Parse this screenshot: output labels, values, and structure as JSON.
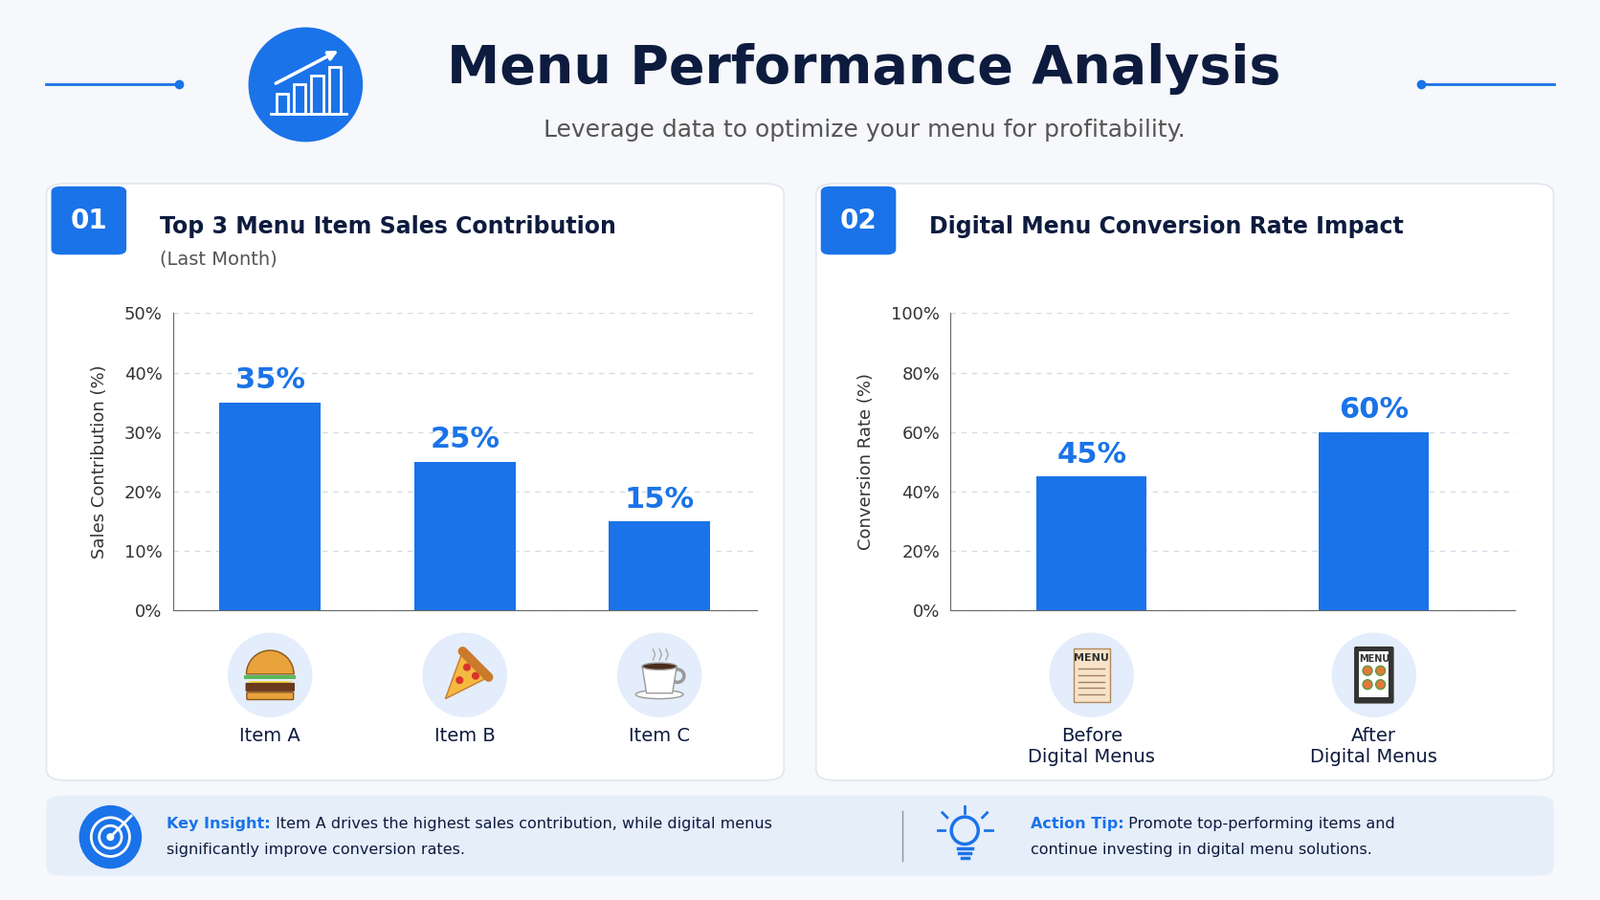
{
  "title": "Menu Performance Analysis",
  "subtitle": "Leverage data to optimize your menu for profitability.",
  "menu_icon_label": "MENU",
  "chart_data": [
    {
      "panel": "01",
      "type": "bar",
      "title": "Top 3 Menu Item Sales Contribution",
      "subtitle": "(Last Month)",
      "ylabel": "Sales Contribution (%)",
      "categories": [
        "Item A",
        "Item B",
        "Item C"
      ],
      "values": [
        35,
        25,
        15
      ],
      "value_labels": [
        "35%",
        "25%",
        "15%"
      ],
      "data_labels": true,
      "color": "#1a73e8",
      "ylim": [
        0,
        50
      ],
      "yticks": [
        {
          "value": 0,
          "label": "0%"
        },
        {
          "value": 10,
          "label": "10%"
        },
        {
          "value": 20,
          "label": "20%"
        },
        {
          "value": 30,
          "label": "30%"
        },
        {
          "value": 40,
          "label": "40%"
        },
        {
          "value": 50,
          "label": "50%"
        }
      ],
      "grid": true
    },
    {
      "panel": "02",
      "type": "bar",
      "title": "Digital Menu Conversion Rate Impact",
      "ylabel": "Conversion Rate (%)",
      "categories": [
        "Before Digital Menus",
        "After Digital Menus"
      ],
      "values": [
        45,
        60
      ],
      "value_labels": [
        "45%",
        "60%"
      ],
      "data_labels": true,
      "color": "#1a73e8",
      "ylim": [
        0,
        100
      ],
      "yticks": [
        {
          "value": 0,
          "label": "0%"
        },
        {
          "value": 20,
          "label": "20%"
        },
        {
          "value": 40,
          "label": "40%"
        },
        {
          "value": 60,
          "label": "60%"
        },
        {
          "value": 80,
          "label": "80%"
        },
        {
          "value": 100,
          "label": "100%"
        }
      ],
      "grid": true
    }
  ],
  "key_insight": {
    "label": "Key Insight:",
    "text": "Item A drives the highest sales contribution, while digital menus significantly improve conversion rates."
  },
  "action_tip": {
    "label": "Action Tip:",
    "text": "Promote top-performing items and continue investing in digital menu solutions."
  }
}
